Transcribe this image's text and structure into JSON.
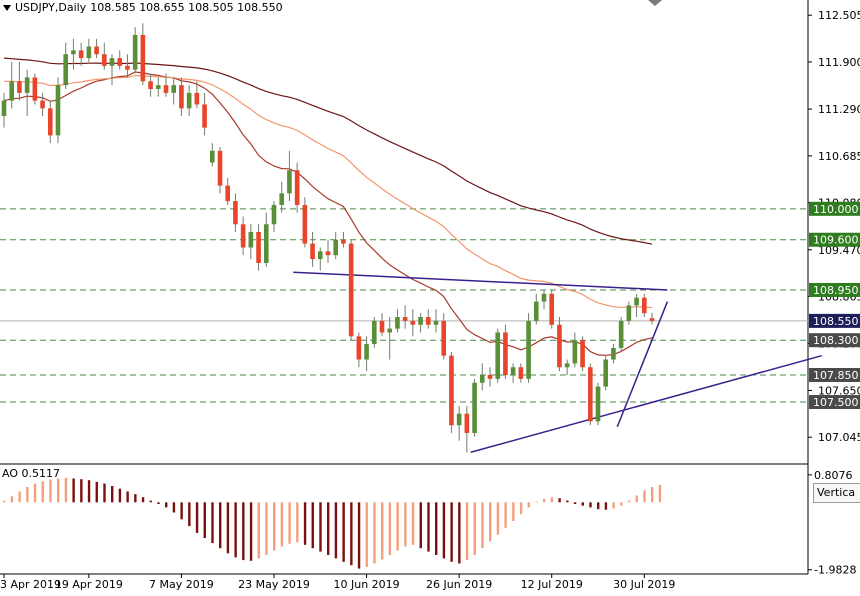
{
  "header": {
    "symbol_label": "USDJPY,Daily",
    "ohlc": "108.585 108.655 108.505 108.550"
  },
  "indicator": {
    "ao_label": "AO 0.5117",
    "tooltip": "Vertica"
  },
  "colors": {
    "bull": "#5a8f3a",
    "bear": "#e8452c",
    "ma_dark": "#6e1414",
    "ma_mid": "#a8392a",
    "ma_light": "#f2966d",
    "trendline": "#3b1f8c",
    "level_highlight": "#2e7d1e",
    "ao_up": "#f4a07e",
    "ao_down": "#7a1010"
  },
  "chart_data": [
    {
      "type": "candlestick",
      "title": "USDJPY,Daily",
      "x_tick_labels": [
        "3 Apr 2019",
        "19 Apr 2019",
        "7 May 2019",
        "23 May 2019",
        "10 Jun 2019",
        "26 Jun 2019",
        "12 Jul 2019",
        "30 Jul 2019"
      ],
      "y_tick_labels": [
        "112.505",
        "111.900",
        "111.290",
        "110.685",
        "110.080",
        "109.470",
        "108.865",
        "108.260",
        "107.650",
        "107.045"
      ],
      "ylim": [
        106.75,
        112.65
      ],
      "price_labels": [
        {
          "value": 110.0,
          "label": "110.000",
          "style": "green"
        },
        {
          "value": 109.6,
          "label": "109.600",
          "style": "green"
        },
        {
          "value": 108.95,
          "label": "108.950",
          "style": "green"
        },
        {
          "value": 108.55,
          "label": "108.550",
          "style": "navy"
        },
        {
          "value": 108.3,
          "label": "108.300",
          "style": "gray"
        },
        {
          "value": 107.85,
          "label": "107.850",
          "style": "gray"
        },
        {
          "value": 107.5,
          "label": "107.500",
          "style": "gray"
        }
      ],
      "horizontal_levels": [
        110.0,
        109.6,
        108.95,
        108.3,
        107.85,
        107.5
      ],
      "candles": [
        {
          "o": 111.2,
          "h": 111.5,
          "l": 111.05,
          "c": 111.4
        },
        {
          "o": 111.4,
          "h": 111.9,
          "l": 111.3,
          "c": 111.65
        },
        {
          "o": 111.65,
          "h": 111.9,
          "l": 111.4,
          "c": 111.5
        },
        {
          "o": 111.5,
          "h": 111.8,
          "l": 111.2,
          "c": 111.7
        },
        {
          "o": 111.7,
          "h": 111.75,
          "l": 111.35,
          "c": 111.4
        },
        {
          "o": 111.4,
          "h": 111.5,
          "l": 111.2,
          "c": 111.3
        },
        {
          "o": 111.3,
          "h": 111.4,
          "l": 110.85,
          "c": 110.95
        },
        {
          "o": 110.95,
          "h": 111.7,
          "l": 110.85,
          "c": 111.6
        },
        {
          "o": 111.6,
          "h": 112.15,
          "l": 111.55,
          "c": 112.0
        },
        {
          "o": 112.0,
          "h": 112.2,
          "l": 111.8,
          "c": 112.05
        },
        {
          "o": 112.05,
          "h": 112.15,
          "l": 111.85,
          "c": 111.95
        },
        {
          "o": 111.95,
          "h": 112.2,
          "l": 111.9,
          "c": 112.1
        },
        {
          "o": 112.1,
          "h": 112.2,
          "l": 111.95,
          "c": 112.0
        },
        {
          "o": 112.0,
          "h": 112.15,
          "l": 111.8,
          "c": 111.85
        },
        {
          "o": 111.85,
          "h": 112.0,
          "l": 111.6,
          "c": 111.95
        },
        {
          "o": 111.95,
          "h": 112.05,
          "l": 111.8,
          "c": 111.85
        },
        {
          "o": 111.85,
          "h": 112.0,
          "l": 111.7,
          "c": 111.8
        },
        {
          "o": 111.8,
          "h": 112.35,
          "l": 111.75,
          "c": 112.25
        },
        {
          "o": 112.25,
          "h": 112.4,
          "l": 111.6,
          "c": 111.65
        },
        {
          "o": 111.65,
          "h": 111.75,
          "l": 111.45,
          "c": 111.55
        },
        {
          "o": 111.55,
          "h": 111.7,
          "l": 111.45,
          "c": 111.6
        },
        {
          "o": 111.6,
          "h": 111.75,
          "l": 111.45,
          "c": 111.5
        },
        {
          "o": 111.5,
          "h": 111.7,
          "l": 111.35,
          "c": 111.6
        },
        {
          "o": 111.6,
          "h": 111.7,
          "l": 111.2,
          "c": 111.3
        },
        {
          "o": 111.3,
          "h": 111.6,
          "l": 111.2,
          "c": 111.5
        },
        {
          "o": 111.5,
          "h": 111.65,
          "l": 111.3,
          "c": 111.35
        },
        {
          "o": 111.35,
          "h": 111.5,
          "l": 110.95,
          "c": 111.05
        },
        {
          "o": 110.6,
          "h": 110.85,
          "l": 110.55,
          "c": 110.75
        },
        {
          "o": 110.75,
          "h": 110.8,
          "l": 110.2,
          "c": 110.3
        },
        {
          "o": 110.3,
          "h": 110.4,
          "l": 110.05,
          "c": 110.1
        },
        {
          "o": 110.1,
          "h": 110.2,
          "l": 109.7,
          "c": 109.8
        },
        {
          "o": 109.8,
          "h": 109.9,
          "l": 109.4,
          "c": 109.5
        },
        {
          "o": 109.5,
          "h": 109.8,
          "l": 109.35,
          "c": 109.7
        },
        {
          "o": 109.7,
          "h": 109.8,
          "l": 109.2,
          "c": 109.3
        },
        {
          "o": 109.3,
          "h": 109.95,
          "l": 109.25,
          "c": 109.8
        },
        {
          "o": 109.8,
          "h": 110.1,
          "l": 109.7,
          "c": 110.05
        },
        {
          "o": 110.05,
          "h": 110.35,
          "l": 109.95,
          "c": 110.2
        },
        {
          "o": 110.2,
          "h": 110.75,
          "l": 110.1,
          "c": 110.5
        },
        {
          "o": 110.5,
          "h": 110.6,
          "l": 109.95,
          "c": 110.05
        },
        {
          "o": 110.05,
          "h": 110.15,
          "l": 109.5,
          "c": 109.55
        },
        {
          "o": 109.55,
          "h": 109.7,
          "l": 109.25,
          "c": 109.35
        },
        {
          "o": 109.35,
          "h": 109.5,
          "l": 109.2,
          "c": 109.45
        },
        {
          "o": 109.45,
          "h": 109.6,
          "l": 109.3,
          "c": 109.4
        },
        {
          "o": 109.4,
          "h": 109.7,
          "l": 109.35,
          "c": 109.6
        },
        {
          "o": 109.6,
          "h": 109.7,
          "l": 109.5,
          "c": 109.55
        },
        {
          "o": 109.55,
          "h": 109.6,
          "l": 108.3,
          "c": 108.35
        },
        {
          "o": 108.35,
          "h": 108.4,
          "l": 107.95,
          "c": 108.05
        },
        {
          "o": 108.05,
          "h": 108.35,
          "l": 107.9,
          "c": 108.25
        },
        {
          "o": 108.25,
          "h": 108.6,
          "l": 108.2,
          "c": 108.55
        },
        {
          "o": 108.55,
          "h": 108.65,
          "l": 108.35,
          "c": 108.4
        },
        {
          "o": 108.4,
          "h": 108.6,
          "l": 108.05,
          "c": 108.45
        },
        {
          "o": 108.45,
          "h": 108.7,
          "l": 108.4,
          "c": 108.6
        },
        {
          "o": 108.6,
          "h": 108.75,
          "l": 108.45,
          "c": 108.55
        },
        {
          "o": 108.55,
          "h": 108.7,
          "l": 108.35,
          "c": 108.5
        },
        {
          "o": 108.5,
          "h": 108.65,
          "l": 108.4,
          "c": 108.6
        },
        {
          "o": 108.6,
          "h": 108.7,
          "l": 108.45,
          "c": 108.5
        },
        {
          "o": 108.5,
          "h": 108.7,
          "l": 108.4,
          "c": 108.55
        },
        {
          "o": 108.55,
          "h": 108.65,
          "l": 108.05,
          "c": 108.1
        },
        {
          "o": 108.1,
          "h": 108.15,
          "l": 107.1,
          "c": 107.2
        },
        {
          "o": 107.2,
          "h": 107.45,
          "l": 107.0,
          "c": 107.35
        },
        {
          "o": 107.35,
          "h": 107.45,
          "l": 106.85,
          "c": 107.1
        },
        {
          "o": 107.1,
          "h": 107.8,
          "l": 107.05,
          "c": 107.75
        },
        {
          "o": 107.75,
          "h": 108.0,
          "l": 107.65,
          "c": 107.85
        },
        {
          "o": 107.85,
          "h": 107.95,
          "l": 107.7,
          "c": 107.8
        },
        {
          "o": 107.8,
          "h": 108.45,
          "l": 107.75,
          "c": 108.4
        },
        {
          "o": 108.4,
          "h": 108.5,
          "l": 107.8,
          "c": 107.85
        },
        {
          "o": 107.85,
          "h": 108.0,
          "l": 107.75,
          "c": 107.95
        },
        {
          "o": 107.95,
          "h": 108.0,
          "l": 107.75,
          "c": 107.8
        },
        {
          "o": 107.8,
          "h": 108.65,
          "l": 107.75,
          "c": 108.55
        },
        {
          "o": 108.55,
          "h": 108.9,
          "l": 108.5,
          "c": 108.8
        },
        {
          "o": 108.8,
          "h": 108.95,
          "l": 108.7,
          "c": 108.9
        },
        {
          "o": 108.9,
          "h": 108.95,
          "l": 108.45,
          "c": 108.5
        },
        {
          "o": 108.5,
          "h": 108.6,
          "l": 107.9,
          "c": 107.95
        },
        {
          "o": 107.95,
          "h": 108.05,
          "l": 107.85,
          "c": 108.0
        },
        {
          "o": 108.0,
          "h": 108.4,
          "l": 107.95,
          "c": 108.3
        },
        {
          "o": 108.3,
          "h": 108.35,
          "l": 107.9,
          "c": 107.95
        },
        {
          "o": 107.95,
          "h": 108.0,
          "l": 107.2,
          "c": 107.25
        },
        {
          "o": 107.25,
          "h": 107.75,
          "l": 107.2,
          "c": 107.7
        },
        {
          "o": 107.7,
          "h": 108.1,
          "l": 107.65,
          "c": 108.05
        },
        {
          "o": 108.05,
          "h": 108.25,
          "l": 108.0,
          "c": 108.2
        },
        {
          "o": 108.2,
          "h": 108.6,
          "l": 108.15,
          "c": 108.55
        },
        {
          "o": 108.55,
          "h": 108.8,
          "l": 108.5,
          "c": 108.75
        },
        {
          "o": 108.75,
          "h": 108.9,
          "l": 108.6,
          "c": 108.85
        },
        {
          "o": 108.85,
          "h": 108.9,
          "l": 108.6,
          "c": 108.65
        },
        {
          "o": 108.585,
          "h": 108.655,
          "l": 108.505,
          "c": 108.55
        }
      ],
      "ao": {
        "value_label": "AO 0.5117",
        "tick_labels": [
          "0.8076",
          "-1.9828"
        ],
        "ylim": [
          -2.05,
          0.95
        ],
        "values": [
          0.05,
          0.18,
          0.32,
          0.45,
          0.55,
          0.62,
          0.67,
          0.7,
          0.72,
          0.7,
          0.68,
          0.65,
          0.6,
          0.55,
          0.48,
          0.4,
          0.32,
          0.24,
          0.15,
          0.05,
          -0.05,
          -0.15,
          -0.3,
          -0.5,
          -0.7,
          -0.9,
          -1.05,
          -1.2,
          -1.35,
          -1.5,
          -1.62,
          -1.7,
          -1.72,
          -1.65,
          -1.55,
          -1.42,
          -1.3,
          -1.22,
          -1.18,
          -1.25,
          -1.35,
          -1.45,
          -1.55,
          -1.65,
          -1.75,
          -1.85,
          -1.95,
          -1.9,
          -1.8,
          -1.68,
          -1.55,
          -1.42,
          -1.3,
          -1.25,
          -1.35,
          -1.45,
          -1.55,
          -1.65,
          -1.75,
          -1.8,
          -1.7,
          -1.55,
          -1.35,
          -1.15,
          -0.95,
          -0.75,
          -0.55,
          -0.35,
          -0.15,
          0.02,
          0.1,
          0.15,
          0.12,
          0.05,
          -0.05,
          -0.1,
          -0.15,
          -0.2,
          -0.22,
          -0.18,
          -0.1,
          0.05,
          0.2,
          0.35,
          0.45,
          0.51
        ]
      }
    }
  ]
}
